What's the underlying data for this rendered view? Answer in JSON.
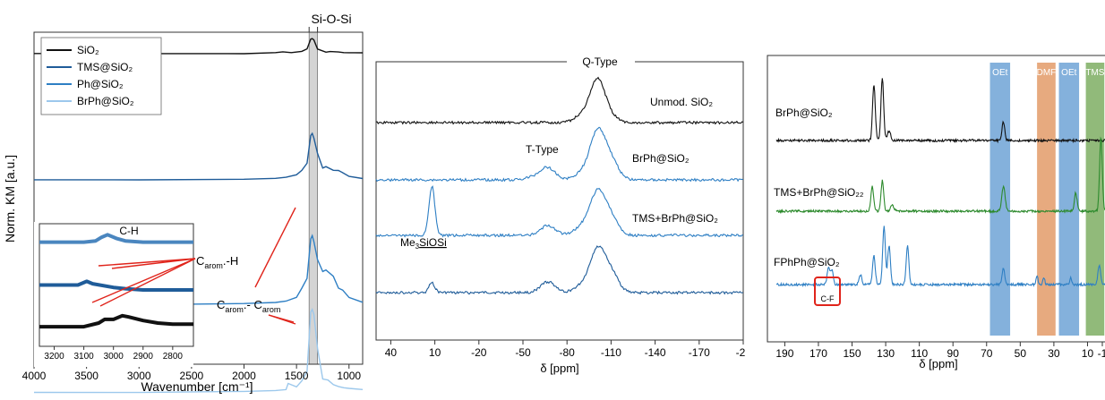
{
  "chart_data": [
    {
      "type": "line",
      "title": "Si-O-Si",
      "xlabel": "Wavenumber [cm⁻¹]",
      "ylabel": "Norm. KM [a.u.]",
      "xlim": [
        4000,
        870
      ],
      "x_ticks": [
        "4000",
        "3500",
        "3000",
        "2500",
        "2000",
        "1500",
        "1000"
      ],
      "legend_position": "top-left",
      "series": [
        {
          "name": "SiO₂",
          "color": "#111111",
          "x": [
            4000,
            3000,
            2000,
            1700,
            1630,
            1550,
            1450,
            1400,
            1365,
            1350,
            1335,
            1300,
            1220,
            1180,
            1100,
            1050,
            1000,
            950,
            870
          ],
          "y": [
            0.8,
            0.8,
            0.8,
            0.81,
            0.82,
            0.81,
            0.83,
            0.86,
            0.99,
            1.0,
            0.98,
            0.86,
            0.82,
            0.83,
            0.82,
            0.81,
            0.81,
            0.81,
            0.81
          ]
        },
        {
          "name": "TMS@SiO₂",
          "color": "#1f5c99",
          "x": [
            4000,
            3000,
            2000,
            1700,
            1600,
            1500,
            1450,
            1400,
            1365,
            1350,
            1335,
            1300,
            1250,
            1220,
            1150,
            1100,
            1060,
            1000,
            870
          ],
          "y": [
            0.58,
            0.58,
            0.585,
            0.59,
            0.6,
            0.62,
            0.66,
            0.72,
            0.95,
            0.97,
            0.93,
            0.8,
            0.68,
            0.69,
            0.66,
            0.66,
            0.64,
            0.61,
            0.59
          ]
        },
        {
          "name": "Ph@SiO₂",
          "color": "#2e7fc4",
          "x": [
            4000,
            3000,
            2000,
            1700,
            1600,
            1500,
            1450,
            1400,
            1365,
            1350,
            1335,
            1300,
            1250,
            1220,
            1150,
            1100,
            1060,
            1000,
            870
          ],
          "y": [
            0.38,
            0.38,
            0.39,
            0.4,
            0.41,
            0.44,
            0.52,
            0.6,
            0.93,
            0.96,
            0.91,
            0.76,
            0.66,
            0.67,
            0.62,
            0.52,
            0.5,
            0.44,
            0.4
          ]
        },
        {
          "name": "BrPh@SiO₂",
          "color": "#9cc8ec",
          "x": [
            4000,
            3000,
            2000,
            1700,
            1600,
            1580,
            1500,
            1450,
            1400,
            1365,
            1350,
            1335,
            1300,
            1250,
            1200,
            1150,
            1100,
            1050,
            1000,
            870
          ],
          "y": [
            0.04,
            0.04,
            0.05,
            0.06,
            0.07,
            0.13,
            0.1,
            0.16,
            0.26,
            0.87,
            0.9,
            0.85,
            0.5,
            0.18,
            0.17,
            0.12,
            0.1,
            0.09,
            0.08,
            0.07
          ]
        }
      ],
      "inset": {
        "xlim": [
          3250,
          2730
        ],
        "x_ticks": [
          "3200",
          "3100",
          "3000",
          "2900",
          "2800"
        ],
        "series": [
          {
            "color": "#4a86bf",
            "x": [
              3250,
              3100,
              3060,
              3040,
              3020,
              2990,
              2960,
              2900,
              2800,
              2730
            ],
            "y": [
              0.85,
              0.85,
              0.86,
              0.89,
              0.91,
              0.88,
              0.86,
              0.85,
              0.85,
              0.85
            ]
          },
          {
            "color": "#1f5c99",
            "x": [
              3250,
              3120,
              3090,
              3070,
              3000,
              2960,
              2900,
              2800,
              2730
            ],
            "y": [
              0.5,
              0.5,
              0.53,
              0.51,
              0.48,
              0.47,
              0.46,
              0.46,
              0.46
            ]
          },
          {
            "color": "#111111",
            "x": [
              3250,
              3100,
              3050,
              3030,
              3000,
              2970,
              2950,
              2900,
              2850,
              2800,
              2730
            ],
            "y": [
              0.16,
              0.16,
              0.19,
              0.22,
              0.22,
              0.25,
              0.24,
              0.21,
              0.19,
              0.18,
              0.18
            ]
          }
        ],
        "annotation": "C-H"
      },
      "annotations": [
        "C-H",
        "C",
        "arom",
        ".-H",
        "C",
        "arom",
        ".- C",
        "arom"
      ]
    },
    {
      "type": "line",
      "title": "Q-Type",
      "xlabel": "δ [ppm]",
      "xlim": [
        50,
        -200
      ],
      "x_ticks": [
        "40",
        "10",
        "-20",
        "-50",
        "-80",
        "-110",
        "-140",
        "-170",
        "-2"
      ],
      "series": [
        {
          "name": "Unmod. SiO₂",
          "color": "#111111",
          "peaks": [
            [
              -92,
              0.15,
              6
            ],
            [
              -101,
              0.75,
              5
            ],
            [
              -110,
              0.1,
              5
            ]
          ]
        },
        {
          "name": "BrPh@SiO₂",
          "color": "#2e7fc4",
          "peaks": [
            [
              -58,
              0.05,
              6
            ],
            [
              -67,
              0.22,
              5
            ],
            [
              -92,
              0.15,
              6
            ],
            [
              -101,
              0.85,
              5
            ],
            [
              -110,
              0.35,
              5
            ]
          ]
        },
        {
          "name": "TMS+BrPh@SiO₂",
          "color": "#2e7fc4",
          "peaks": [
            [
              12,
              1.0,
              2
            ],
            [
              -67,
              0.2,
              5
            ],
            [
              -92,
              0.2,
              6
            ],
            [
              -101,
              0.8,
              5
            ],
            [
              -110,
              0.35,
              5
            ]
          ]
        },
        {
          "name": "",
          "color": "#1f5c99",
          "peaks": [
            [
              12,
              0.18,
              2
            ],
            [
              -67,
              0.2,
              5
            ],
            [
              -92,
              0.15,
              6
            ],
            [
              -101,
              0.75,
              5
            ],
            [
              -110,
              0.35,
              5
            ]
          ]
        }
      ],
      "annotations": [
        "T-Type",
        "Me",
        "3",
        "SiOSi"
      ]
    },
    {
      "type": "line",
      "xlabel": "δ [ppm]",
      "xlim": [
        200,
        0
      ],
      "x_ticks": [
        "190",
        "170",
        "150",
        "130",
        "110",
        "90",
        "70",
        "50",
        "30",
        "10",
        "-1"
      ],
      "bands": [
        {
          "label": "OEt",
          "from": 68,
          "to": 56,
          "color": "#6fa3d6"
        },
        {
          "label": "DMF",
          "from": 40,
          "to": 29,
          "color": "#e39b68"
        },
        {
          "label": "OEt",
          "from": 27,
          "to": 15,
          "color": "#6fa3d6"
        },
        {
          "label": "TMS",
          "from": 11,
          "to": 0,
          "color": "#7eae63"
        }
      ],
      "series": [
        {
          "name": "BrPh@SiO₂",
          "color": "#111111",
          "peaks": [
            [
              137,
              0.9,
              0.8
            ],
            [
              132,
              1.0,
              0.8
            ],
            [
              128,
              0.15,
              1.0
            ],
            [
              60,
              0.3,
              0.8
            ]
          ]
        },
        {
          "name": "TMS+BrPh@SiO₂₂",
          "color": "#2d8a2d",
          "peaks": [
            [
              138,
              0.4,
              0.8
            ],
            [
              132,
              0.5,
              0.8
            ],
            [
              126,
              0.1,
              1.0
            ],
            [
              60,
              0.4,
              1.0
            ],
            [
              17,
              0.3,
              0.8
            ],
            [
              2,
              1.2,
              0.8
            ]
          ]
        },
        {
          "name": "FPhPh@SiO₂",
          "color": "#2e7fc4",
          "peaks": [
            [
              164,
              0.25,
              0.8
            ],
            [
              162,
              0.22,
              0.8
            ],
            [
              145,
              0.15,
              0.8
            ],
            [
              137,
              0.45,
              0.8
            ],
            [
              131,
              0.9,
              0.8
            ],
            [
              128,
              0.6,
              0.8
            ],
            [
              117,
              0.6,
              0.8
            ],
            [
              60,
              0.25,
              0.8
            ],
            [
              40,
              0.12,
              0.6
            ],
            [
              36,
              0.12,
              0.6
            ],
            [
              20,
              0.1,
              0.6
            ],
            [
              3,
              0.3,
              0.8
            ]
          ]
        }
      ],
      "annotations": [
        "C-F"
      ]
    }
  ]
}
